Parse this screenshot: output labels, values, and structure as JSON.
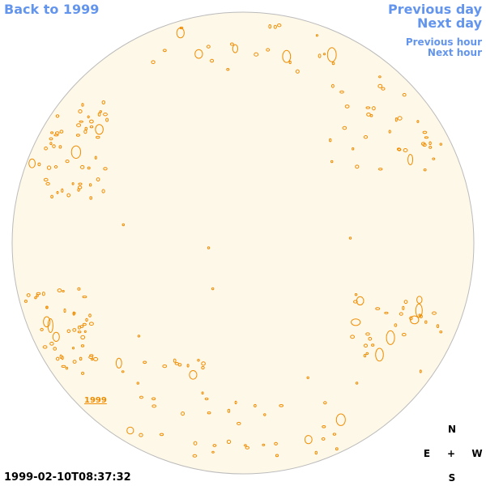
{
  "nav": {
    "back": "Back to 1999",
    "previous_day": "Previous day",
    "next_day": "Next day",
    "previous_hour": "Previous hour",
    "next_hour": "Next hour"
  },
  "year_label": "1999",
  "compass": {
    "north": "N",
    "east": "E",
    "center": "+",
    "west": "W",
    "south": "S"
  },
  "timestamp": "1999-02-10T08:37:32"
}
